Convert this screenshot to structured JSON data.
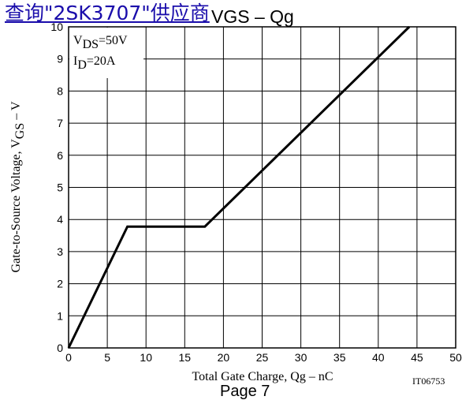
{
  "link": {
    "text": "查询\"2SK3707\"供应商"
  },
  "chart_data": {
    "type": "line",
    "title": "VGS – Qg",
    "xlabel": "Total Gate Charge, Qg – nC",
    "ylabel": {
      "pre": "Gate-to-Source Voltage, V",
      "sub": "GS",
      "post": " – V"
    },
    "xlim": [
      0,
      50
    ],
    "ylim": [
      0,
      10
    ],
    "x_ticks": [
      "0",
      "5",
      "10",
      "15",
      "20",
      "25",
      "30",
      "35",
      "40",
      "45",
      "50"
    ],
    "y_ticks": [
      "0",
      "1",
      "2",
      "3",
      "4",
      "5",
      "6",
      "7",
      "8",
      "9",
      "10"
    ],
    "grid": true,
    "annotations": [
      {
        "pre": "V",
        "sub": "DS",
        "post": "=50V"
      },
      {
        "pre": "I",
        "sub": "D",
        "post": "=20A"
      }
    ],
    "series": [
      {
        "x": [
          0,
          7.6,
          17.6,
          44
        ],
        "y": [
          0,
          3.78,
          3.78,
          10
        ]
      }
    ]
  },
  "figure_id": "IT06753",
  "footer_text": "Page 7"
}
